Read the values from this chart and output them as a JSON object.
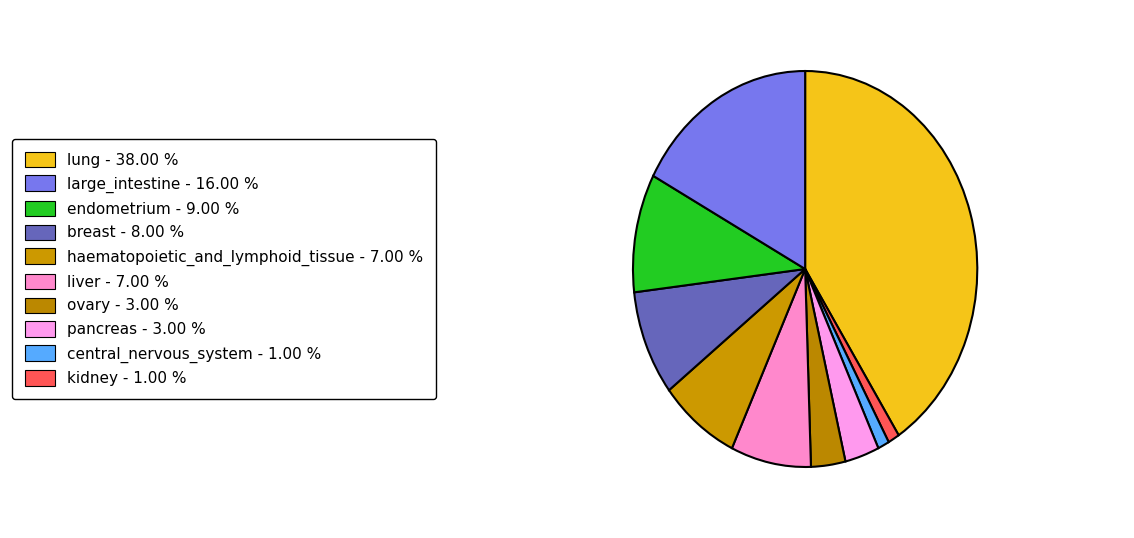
{
  "labels": [
    "lung - 38.00 %",
    "large_intestine - 16.00 %",
    "endometrium - 9.00 %",
    "breast - 8.00 %",
    "haematopoietic_and_lymphoid_tissue - 7.00 %",
    "liver - 7.00 %",
    "ovary - 3.00 %",
    "pancreas - 3.00 %",
    "central_nervous_system - 1.00 %",
    "kidney - 1.00 %"
  ],
  "values": [
    38,
    16,
    9,
    8,
    7,
    7,
    3,
    3,
    1,
    1
  ],
  "colors": [
    "#F5C518",
    "#7777EE",
    "#22CC22",
    "#6666BB",
    "#CC9900",
    "#FF88CC",
    "#BB8800",
    "#FF99EE",
    "#55AAFF",
    "#FF5555"
  ],
  "pie_order": [
    0,
    9,
    8,
    7,
    6,
    5,
    4,
    3,
    2,
    1
  ],
  "startangle": 90,
  "figsize": [
    11.34,
    5.38
  ],
  "dpi": 100
}
